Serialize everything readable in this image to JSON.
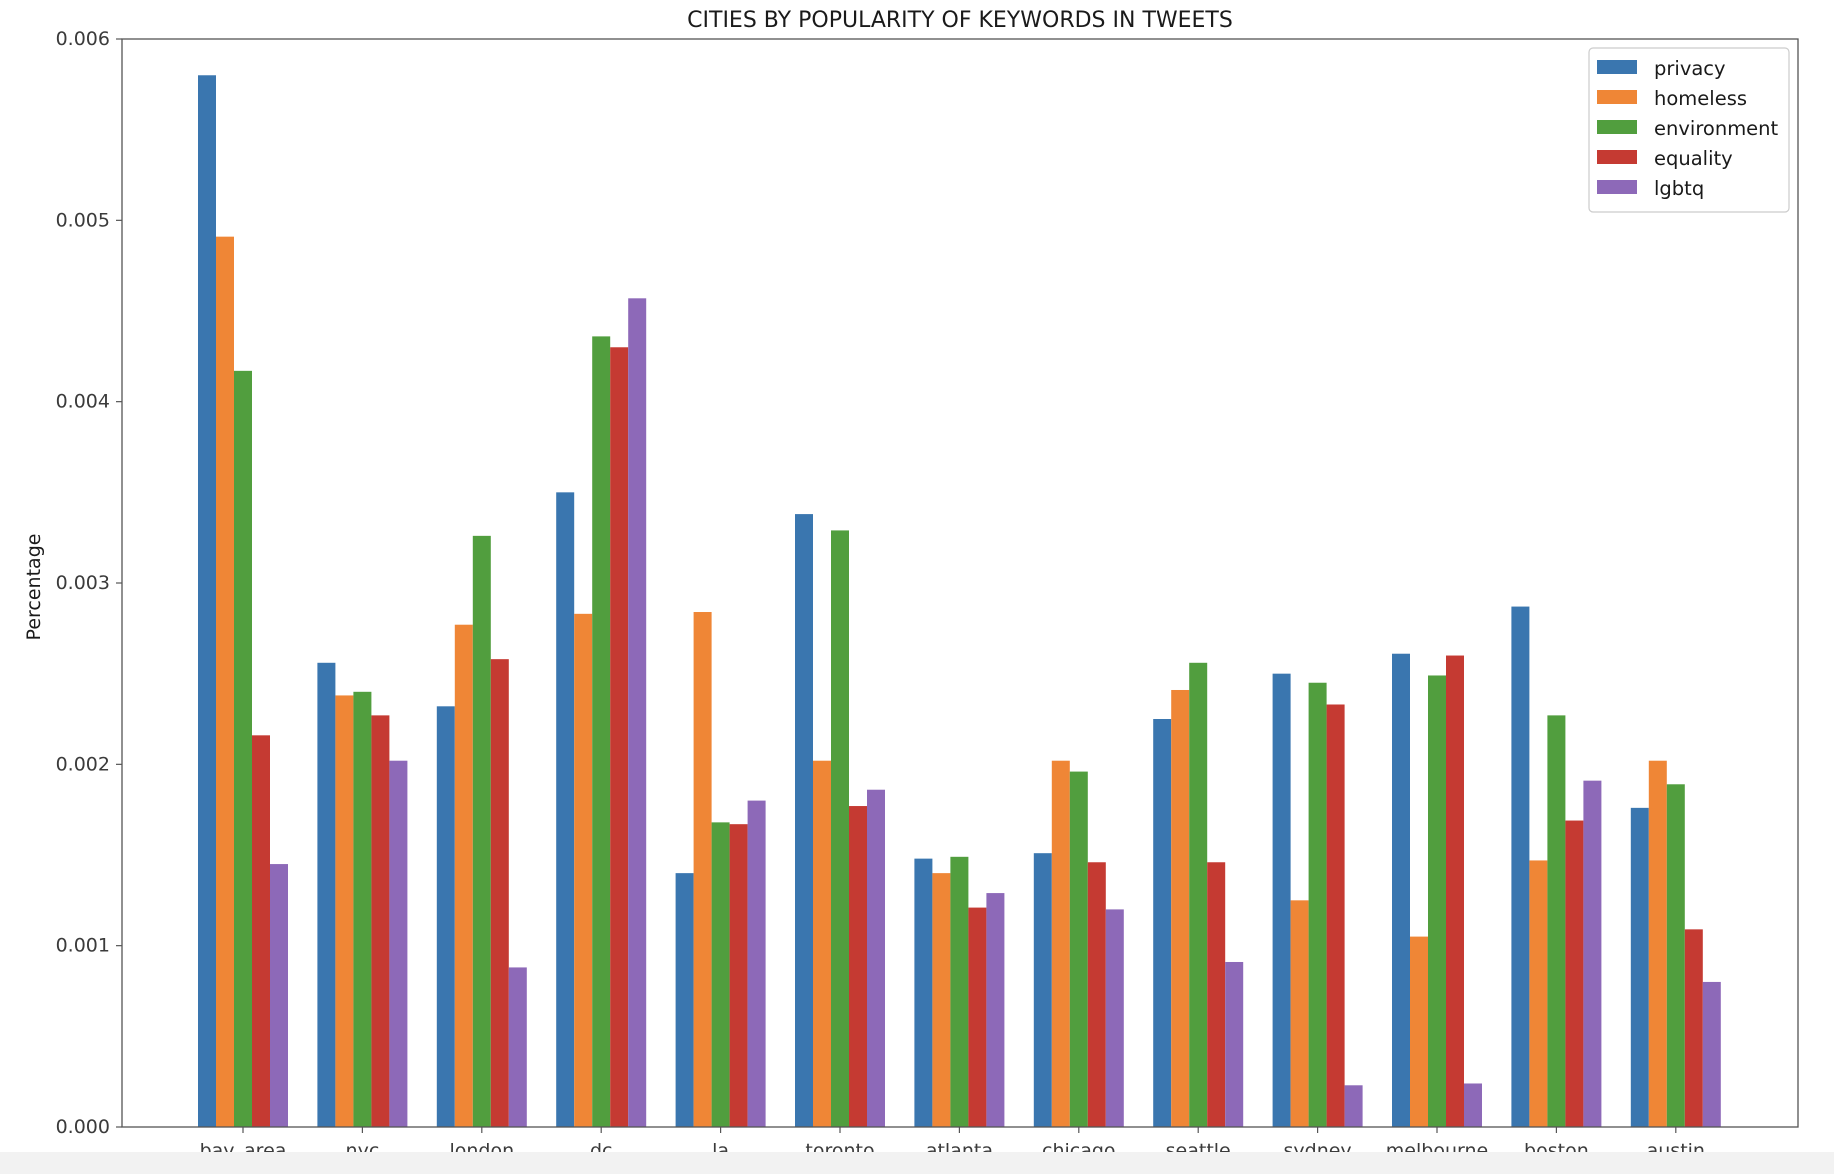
{
  "chart_data": {
    "type": "bar",
    "title": "CITIES BY POPULARITY OF KEYWORDS IN TWEETS",
    "xlabel": "",
    "ylabel": "Percentage",
    "ylim": [
      0,
      0.006
    ],
    "yticks": [
      "0.000",
      "0.001",
      "0.002",
      "0.003",
      "0.004",
      "0.005",
      "0.006"
    ],
    "grid": false,
    "legend_position": "top-right",
    "categories": [
      "bay_area",
      "nyc",
      "london",
      "dc",
      "la",
      "toronto",
      "atlanta",
      "chicago",
      "seattle",
      "sydney",
      "melbourne",
      "boston",
      "austin"
    ],
    "series": [
      {
        "name": "privacy",
        "color": "#3a76af",
        "values": [
          0.0058,
          0.00256,
          0.00232,
          0.0035,
          0.0014,
          0.00338,
          0.00148,
          0.00151,
          0.00225,
          0.0025,
          0.00261,
          0.00287,
          0.00176
        ]
      },
      {
        "name": "homeless",
        "color": "#ef8636",
        "values": [
          0.00491,
          0.00238,
          0.00277,
          0.00283,
          0.00284,
          0.00202,
          0.0014,
          0.00202,
          0.00241,
          0.00125,
          0.00105,
          0.00147,
          0.00202
        ]
      },
      {
        "name": "environment",
        "color": "#519e3e",
        "values": [
          0.00417,
          0.0024,
          0.00326,
          0.00436,
          0.00168,
          0.00329,
          0.00149,
          0.00196,
          0.00256,
          0.00245,
          0.00249,
          0.00227,
          0.00189
        ]
      },
      {
        "name": "equality",
        "color": "#c53a32",
        "values": [
          0.00216,
          0.00227,
          0.00258,
          0.0043,
          0.00167,
          0.00177,
          0.00121,
          0.00146,
          0.00146,
          0.00233,
          0.0026,
          0.00169,
          0.00109
        ]
      },
      {
        "name": "lgbtq",
        "color": "#8d69b8",
        "values": [
          0.00145,
          0.00202,
          0.00088,
          0.00457,
          0.0018,
          0.00186,
          0.00129,
          0.0012,
          0.00091,
          0.00023,
          0.00024,
          0.00191,
          0.0008
        ]
      }
    ]
  }
}
